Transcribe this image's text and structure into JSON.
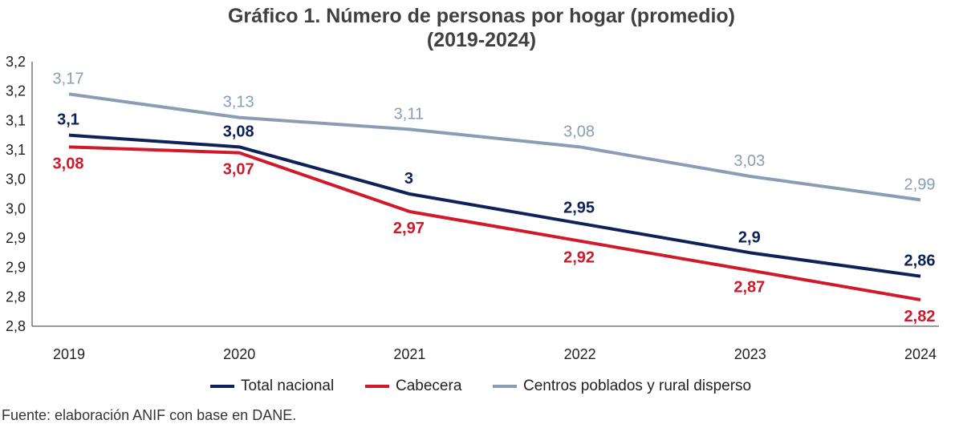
{
  "title_line1": "Gráfico 1. Número de personas por hogar (promedio)",
  "title_line2": "(2019-2024)",
  "source": "Fuente: elaboración ANIF con base en DANE.",
  "chart_data": {
    "type": "line",
    "title": "Gráfico 1. Número de personas por hogar (promedio) (2019-2024)",
    "xlabel": "",
    "ylabel": "",
    "categories": [
      "2019",
      "2020",
      "2021",
      "2022",
      "2023",
      "2024"
    ],
    "y_tick_labels": [
      "2,8",
      "2,8",
      "2,9",
      "2,9",
      "3,0",
      "3,0",
      "3,1",
      "3,1",
      "3,2",
      "3,2"
    ],
    "ylim": [
      2.775,
      3.225
    ],
    "grid": false,
    "legend_position": "bottom",
    "series": [
      {
        "name": "Total nacional",
        "color": "#0f2158",
        "values": [
          3.1,
          3.08,
          3.0,
          2.95,
          2.9,
          2.86
        ],
        "labels": [
          "3,1",
          "3,08",
          "3",
          "2,95",
          "2,9",
          "2,86"
        ],
        "label_position": "above"
      },
      {
        "name": "Cabecera",
        "color": "#d0192b",
        "values": [
          3.08,
          3.07,
          2.97,
          2.92,
          2.87,
          2.82
        ],
        "labels": [
          "3,08",
          "3,07",
          "2,97",
          "2,92",
          "2,87",
          "2,82"
        ],
        "label_position": "below"
      },
      {
        "name": "Centros poblados y rural disperso",
        "color": "#8a9db5",
        "values": [
          3.17,
          3.13,
          3.11,
          3.08,
          3.03,
          2.99
        ],
        "labels": [
          "3,17",
          "3,13",
          "3,11",
          "3,08",
          "3,03",
          "2,99"
        ],
        "label_position": "above"
      }
    ]
  }
}
